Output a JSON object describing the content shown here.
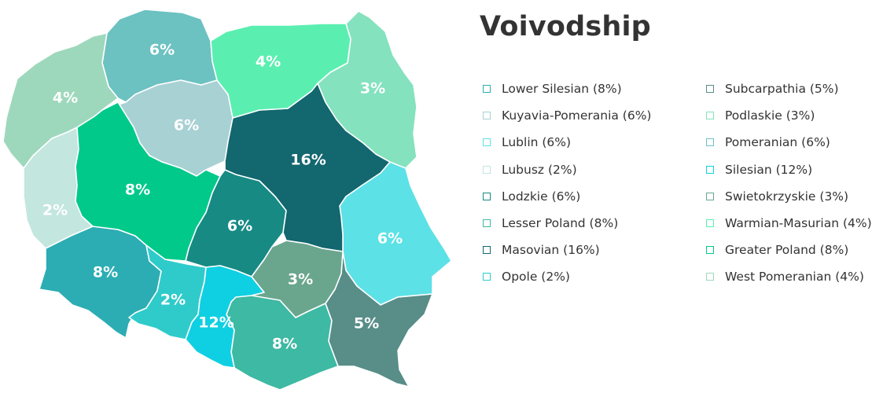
{
  "title": "Voivodship",
  "regions": [
    {
      "name": "Lower Silesian",
      "pct": "8%",
      "color": "#2BADB3"
    },
    {
      "name": "Kuyavia-Pomerania",
      "pct": "6%",
      "color": "#A8D1D4"
    },
    {
      "name": "Lublin",
      "pct": "6%",
      "color": "#5CE1E6"
    },
    {
      "name": "Lubusz",
      "pct": "2%",
      "color": "#C3E6DF"
    },
    {
      "name": "Lodzkie",
      "pct": "6%",
      "color": "#178A84"
    },
    {
      "name": "Lesser Poland",
      "pct": "8%",
      "color": "#3EB9A3"
    },
    {
      "name": "Masovian",
      "pct": "16%",
      "color": "#13676F"
    },
    {
      "name": "Opole",
      "pct": "2%",
      "color": "#2FCBCB"
    },
    {
      "name": "Subcarpathia",
      "pct": "5%",
      "color": "#588D88"
    },
    {
      "name": "Podlaskie",
      "pct": "3%",
      "color": "#84E2BE"
    },
    {
      "name": "Pomeranian",
      "pct": "6%",
      "color": "#6CC1C1"
    },
    {
      "name": "Silesian",
      "pct": "12%",
      "color": "#0FD0E2"
    },
    {
      "name": "Swietokrzyskie",
      "pct": "3%",
      "color": "#6AA68E"
    },
    {
      "name": "Warmian-Masurian",
      "pct": "4%",
      "color": "#5AEFB1"
    },
    {
      "name": "Greater Poland",
      "pct": "8%",
      "color": "#00C98A"
    },
    {
      "name": "West Pomeranian",
      "pct": "4%",
      "color": "#9ED8BC"
    }
  ],
  "legend": {
    "col1": [
      {
        "label": "Lower Silesian (8%)",
        "color": "#2BADB3"
      },
      {
        "label": "Kuyavia-Pomerania (6%)",
        "color": "#A8D1D4"
      },
      {
        "label": "Lublin (6%)",
        "color": "#5CE1E6"
      },
      {
        "label": "Lubusz (2%)",
        "color": "#C3E6DF"
      },
      {
        "label": "Lodzkie (6%)",
        "color": "#178A84"
      },
      {
        "label": "Lesser Poland (8%)",
        "color": "#3EB9A3"
      },
      {
        "label": "Masovian (16%)",
        "color": "#13676F"
      },
      {
        "label": "Opole (2%)",
        "color": "#2FCBCB"
      }
    ],
    "col2": [
      {
        "label": "Subcarpathia (5%)",
        "color": "#588D88"
      },
      {
        "label": "Podlaskie (3%)",
        "color": "#84E2BE"
      },
      {
        "label": "Pomeranian (6%)",
        "color": "#6CC1C1"
      },
      {
        "label": "Silesian (12%)",
        "color": "#0FD0E2"
      },
      {
        "label": "Swietokrzyskie (3%)",
        "color": "#6AA68E"
      },
      {
        "label": "Warmian-Masurian (4%)",
        "color": "#5AEFB1"
      },
      {
        "label": "Greater Poland (8%)",
        "color": "#00C98A"
      },
      {
        "label": "West Pomeranian (4%)",
        "color": "#9ED8BC"
      }
    ]
  }
}
